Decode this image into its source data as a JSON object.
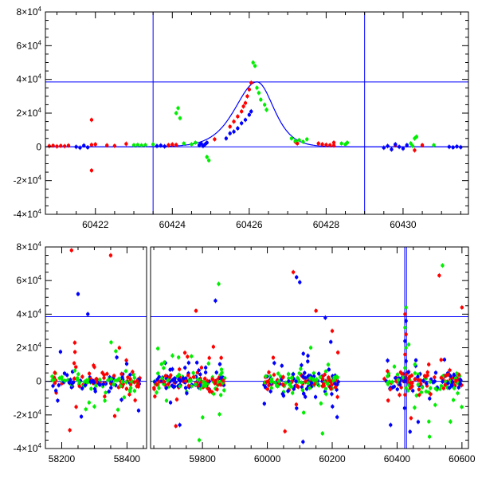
{
  "colors": {
    "red": "#ff0000",
    "green": "#00ee00",
    "blue": "#0000ff",
    "axis": "#000000"
  },
  "chart_data": [
    {
      "type": "scatter",
      "panel": "top",
      "title": "",
      "xlabel": "",
      "ylabel": "",
      "xlim": [
        60420.7,
        60431.7
      ],
      "ylim": [
        -40000,
        80000
      ],
      "x_ticks": [
        60422,
        60424,
        60426,
        60428,
        60430
      ],
      "y_ticks": [
        -40000,
        -20000,
        0,
        20000,
        40000,
        60000,
        80000
      ],
      "y_tick_labels": [
        {
          "base": "-4×10",
          "exp": "4"
        },
        {
          "base": "-2×10",
          "exp": "4"
        },
        {
          "base": "0",
          "exp": ""
        },
        {
          "base": "2×10",
          "exp": "4"
        },
        {
          "base": "4×10",
          "exp": "4"
        },
        {
          "base": "6×10",
          "exp": "4"
        },
        {
          "base": "8×10",
          "exp": "4"
        }
      ],
      "reference_lines": {
        "horizontal": [
          38500,
          0
        ],
        "vertical": [
          60423.5,
          60429.0
        ]
      },
      "model_curve": {
        "t0": 60426.2,
        "peak": 38500,
        "base": 0,
        "tau_rise": 0.9,
        "tau_fall": 0.7
      },
      "series": [
        {
          "name": "",
          "color": "red",
          "points": [
            [
              60420.8,
              500
            ],
            [
              60420.9,
              700
            ],
            [
              60421.0,
              300
            ],
            [
              60421.1,
              600
            ],
            [
              60421.2,
              400
            ],
            [
              60421.3,
              800
            ],
            [
              60421.9,
              1200
            ],
            [
              60422.0,
              1500
            ],
            [
              60422.3,
              900
            ],
            [
              60422.5,
              600
            ],
            [
              60422.8,
              1800
            ],
            [
              60421.9,
              -14000
            ],
            [
              60421.9,
              16000
            ],
            [
              60423.9,
              1000
            ],
            [
              60424.0,
              1400
            ],
            [
              60424.1,
              1200
            ],
            [
              60425.1,
              4500
            ],
            [
              60425.5,
              12000
            ],
            [
              60425.6,
              15000
            ],
            [
              60425.7,
              18000
            ],
            [
              60425.8,
              21000
            ],
            [
              60425.85,
              24000
            ],
            [
              60425.9,
              26000
            ],
            [
              60425.95,
              30000
            ],
            [
              60426.0,
              34000
            ],
            [
              60426.05,
              38000
            ],
            [
              60427.2,
              3000
            ],
            [
              60427.25,
              2000
            ],
            [
              60427.8,
              2000
            ],
            [
              60427.9,
              1500
            ],
            [
              60428.0,
              1200
            ],
            [
              60428.1,
              1000
            ],
            [
              60428.2,
              800
            ],
            [
              60428.2,
              2500
            ],
            [
              60429.8,
              1000
            ],
            [
              60430.3,
              -2000
            ],
            [
              60430.5,
              1000
            ]
          ]
        },
        {
          "name": "",
          "color": "green",
          "points": [
            [
              60423.0,
              1000
            ],
            [
              60423.1,
              1200
            ],
            [
              60423.2,
              900
            ],
            [
              60423.3,
              1100
            ],
            [
              60423.5,
              1500
            ],
            [
              60424.1,
              20000
            ],
            [
              60424.15,
              23000
            ],
            [
              60424.2,
              17000
            ],
            [
              60424.3,
              2000
            ],
            [
              60424.5,
              1500
            ],
            [
              60424.6,
              2500
            ],
            [
              60424.9,
              -6000
            ],
            [
              60424.95,
              -8000
            ],
            [
              60426.1,
              50000
            ],
            [
              60426.15,
              48000
            ],
            [
              60426.2,
              35000
            ],
            [
              60426.25,
              32000
            ],
            [
              60426.3,
              28000
            ],
            [
              60426.4,
              25000
            ],
            [
              60426.45,
              22000
            ],
            [
              60427.1,
              5000
            ],
            [
              60427.2,
              3500
            ],
            [
              60427.3,
              4000
            ],
            [
              60427.4,
              3000
            ],
            [
              60427.5,
              4500
            ],
            [
              60428.4,
              2000
            ],
            [
              60428.5,
              1500
            ],
            [
              60428.55,
              2500
            ],
            [
              60430.2,
              2000
            ],
            [
              60430.25,
              500
            ],
            [
              60430.3,
              5000
            ],
            [
              60430.35,
              6000
            ],
            [
              60430.8,
              1000
            ]
          ]
        },
        {
          "name": "",
          "color": "blue",
          "points": [
            [
              60421.5,
              0
            ],
            [
              60421.6,
              -500
            ],
            [
              60421.7,
              800
            ],
            [
              60421.8,
              -300
            ],
            [
              60423.6,
              500
            ],
            [
              60423.7,
              800
            ],
            [
              60423.8,
              300
            ],
            [
              60424.7,
              1000
            ],
            [
              60424.75,
              2000
            ],
            [
              60424.8,
              500
            ],
            [
              60424.85,
              1500
            ],
            [
              60424.9,
              2500
            ],
            [
              60425.4,
              5000
            ],
            [
              60425.5,
              8000
            ],
            [
              60425.6,
              9000
            ],
            [
              60425.7,
              11000
            ],
            [
              60425.8,
              14000
            ],
            [
              60425.9,
              16000
            ],
            [
              60426.0,
              19000
            ],
            [
              60426.05,
              21000
            ],
            [
              60429.5,
              -500
            ],
            [
              60429.6,
              500
            ],
            [
              60429.7,
              -1500
            ],
            [
              60429.8,
              1500
            ],
            [
              60429.9,
              0
            ],
            [
              60430.0,
              -1000
            ],
            [
              60430.1,
              1000
            ],
            [
              60431.2,
              0
            ],
            [
              60431.3,
              -300
            ],
            [
              60431.4,
              200
            ],
            [
              60431.5,
              -200
            ]
          ]
        }
      ]
    },
    {
      "type": "scatter",
      "panel": "bottom",
      "broken_axis": true,
      "title": "",
      "xlabel": "",
      "ylabel": "",
      "segments": [
        {
          "xlim": [
            58150,
            58460
          ]
        },
        {
          "xlim": [
            59640,
            60620
          ]
        }
      ],
      "ylim": [
        -40000,
        80000
      ],
      "x_ticks": [
        58200,
        58400,
        59800,
        60000,
        60200,
        60400,
        60600
      ],
      "y_ticks": [
        -40000,
        -20000,
        0,
        20000,
        40000,
        60000,
        80000
      ],
      "y_tick_labels": [
        {
          "base": "-4×10",
          "exp": "4"
        },
        {
          "base": "-2×10",
          "exp": "4"
        },
        {
          "base": "0",
          "exp": ""
        },
        {
          "base": "2×10",
          "exp": "4"
        },
        {
          "base": "4×10",
          "exp": "4"
        },
        {
          "base": "6×10",
          "exp": "4"
        },
        {
          "base": "8×10",
          "exp": "4"
        }
      ],
      "reference_lines": {
        "horizontal": [
          38500,
          0
        ],
        "vertical": [
          60423.5,
          60429.0
        ]
      },
      "clusters": [
        {
          "x_range": [
            58170,
            58440
          ],
          "n": 170
        },
        {
          "x_range": [
            59650,
            59870
          ],
          "n": 190
        },
        {
          "x_range": [
            59990,
            60220
          ],
          "n": 210
        },
        {
          "x_range": [
            60360,
            60600
          ],
          "n": 190
        }
      ],
      "outliers": [
        {
          "color": "red",
          "points": [
            [
              58230,
              78000
            ],
            [
              58350,
              75000
            ],
            [
              60080,
              65000
            ],
            [
              60150,
              42000
            ],
            [
              60530,
              63000
            ],
            [
              60600,
              44000
            ],
            [
              59780,
              42000
            ],
            [
              58240,
              23000
            ],
            [
              60200,
              30000
            ]
          ]
        },
        {
          "color": "green",
          "points": [
            [
              59850,
              58000
            ],
            [
              60540,
              69000
            ],
            [
              58300,
              -15000
            ],
            [
              59790,
              -35000
            ],
            [
              60500,
              -33000
            ],
            [
              60170,
              -31000
            ]
          ]
        },
        {
          "color": "blue",
          "points": [
            [
              58250,
              52000
            ],
            [
              58280,
              40000
            ],
            [
              58260,
              -21000
            ],
            [
              60090,
              62000
            ],
            [
              60100,
              59000
            ],
            [
              59840,
              48000
            ],
            [
              60380,
              -26000
            ],
            [
              60440,
              -30000
            ],
            [
              59730,
              -26000
            ],
            [
              60110,
              -36000
            ]
          ]
        }
      ]
    }
  ]
}
